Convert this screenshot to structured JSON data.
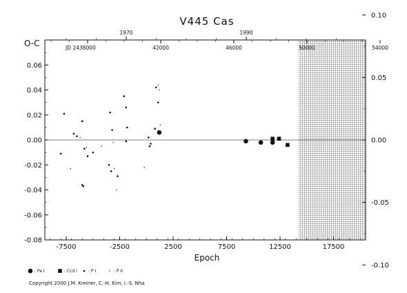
{
  "chart_data": {
    "type": "scatter",
    "title": "V445  Cas",
    "xlabel": "Epoch",
    "ylabel": "O-C",
    "xlim": [
      -9500,
      20500
    ],
    "ylim": [
      -0.08,
      0.08
    ],
    "x_ticks": [
      -7500,
      -2500,
      2500,
      7500,
      12500,
      17500
    ],
    "x_tick_labels": [
      "-7500",
      "-2500",
      "2500",
      "7500",
      "12500",
      "17500"
    ],
    "y_ticks": [
      -0.08,
      -0.06,
      -0.04,
      -0.02,
      0.0,
      0.02,
      0.04,
      0.06
    ],
    "y_tick_labels": [
      "-0.08",
      "-0.06",
      "-0.04",
      "-0.02",
      "0.00",
      "0.02",
      "0.04",
      "0.06"
    ],
    "right_ticks": [
      -0.1,
      -0.05,
      0.0,
      0.05,
      0.1
    ],
    "right_tick_labels": [
      "-0.10",
      "-0.05",
      "0.00",
      "0.05",
      "0.10"
    ],
    "jd_ticks": [
      38000,
      42000,
      46000,
      50000,
      54000
    ],
    "jd_tick_labels": [
      "JD 2438000",
      "42000",
      "46000",
      "50000",
      "54000"
    ],
    "year_ticks": [
      1970,
      1990
    ],
    "year_tick_labels": [
      "1970",
      "1990"
    ],
    "grid": false,
    "hatched_region": [
      14200,
      20500
    ],
    "zero_line": 0.0,
    "series": [
      {
        "name": "Pe I",
        "marker": "large-circle",
        "points": [
          [
            1200,
            0.006
          ],
          [
            9300,
            -0.001
          ],
          [
            10700,
            -0.002
          ],
          [
            11800,
            -0.002
          ]
        ]
      },
      {
        "name": "Ccd I",
        "marker": "square",
        "points": [
          [
            11800,
            0.001
          ],
          [
            12400,
            0.001
          ],
          [
            13200,
            -0.004
          ]
        ]
      },
      {
        "name": "P I",
        "marker": "small-dot",
        "points": [
          [
            -7700,
            0.021
          ],
          [
            -8000,
            -0.011
          ],
          [
            -6800,
            0.005
          ],
          [
            -6500,
            0.003
          ],
          [
            -6000,
            0.015
          ],
          [
            -5800,
            -0.007
          ],
          [
            -5900,
            -0.037
          ],
          [
            -6000,
            -0.036
          ],
          [
            -5500,
            -0.013
          ],
          [
            -5000,
            -0.01
          ],
          [
            -3400,
            0.022
          ],
          [
            -3200,
            0.008
          ],
          [
            -3300,
            -0.025
          ],
          [
            -2700,
            -0.029
          ],
          [
            -2100,
            0.035
          ],
          [
            -1900,
            0.026
          ],
          [
            -1800,
            0.01
          ],
          [
            -1900,
            -0.001
          ],
          [
            200,
            0.002
          ],
          [
            300,
            -0.005
          ],
          [
            800,
            0.009
          ],
          [
            900,
            0.042
          ],
          [
            1100,
            0.03
          ],
          [
            400,
            -0.003
          ],
          [
            -3500,
            -0.02
          ]
        ]
      },
      {
        "name": "P II",
        "marker": "tiny-dot",
        "points": [
          [
            -7100,
            -0.023
          ],
          [
            -5600,
            -0.006
          ],
          [
            -4200,
            -0.005
          ],
          [
            -3100,
            -0.002
          ],
          [
            -2800,
            -0.04
          ],
          [
            -3000,
            -0.023
          ],
          [
            -200,
            -0.022
          ],
          [
            1100,
            0.044
          ],
          [
            1200,
            0.04
          ],
          [
            1300,
            0.012
          ],
          [
            -6200,
            0.002
          ]
        ]
      }
    ]
  },
  "legend": [
    {
      "marker": "large-circle",
      "label": ": Pe I"
    },
    {
      "marker": "square",
      "label": ": Ccd I"
    },
    {
      "marker": "small-dot",
      "label": ": P I"
    },
    {
      "marker": "tiny-dot",
      "label": ": P II"
    }
  ],
  "copyright": "Copyright 2000 J.M. Kreiner, C.-H. Kim, I.-S. Nha"
}
